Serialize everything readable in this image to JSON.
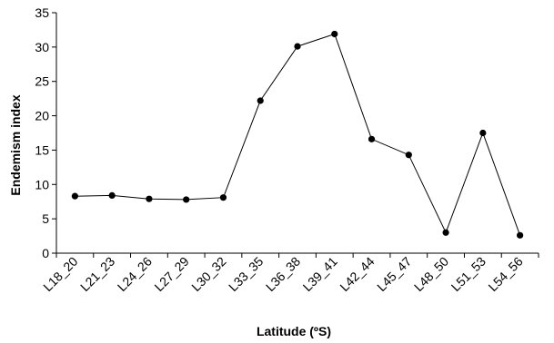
{
  "chart_data": {
    "type": "line",
    "xlabel": "Latitude (ºS)",
    "ylabel": "Endemism index",
    "ylim": [
      0,
      35
    ],
    "yticks": [
      0,
      5,
      10,
      15,
      20,
      25,
      30,
      35
    ],
    "grid": false,
    "legend": "none",
    "categories": [
      "L18_20",
      "L21_23",
      "L24_26",
      "L27_29",
      "L30_32",
      "L33_35",
      "L36_38",
      "L39_41",
      "L42_44",
      "L45_47",
      "L48_50",
      "L51_53",
      "L54_56"
    ],
    "series": [
      {
        "values": [
          8.3,
          8.4,
          7.9,
          7.8,
          8.1,
          22.2,
          30.1,
          31.9,
          16.6,
          14.3,
          3.0,
          17.5,
          2.6
        ]
      }
    ],
    "line_color": "#000000",
    "marker_color": "#000000"
  }
}
